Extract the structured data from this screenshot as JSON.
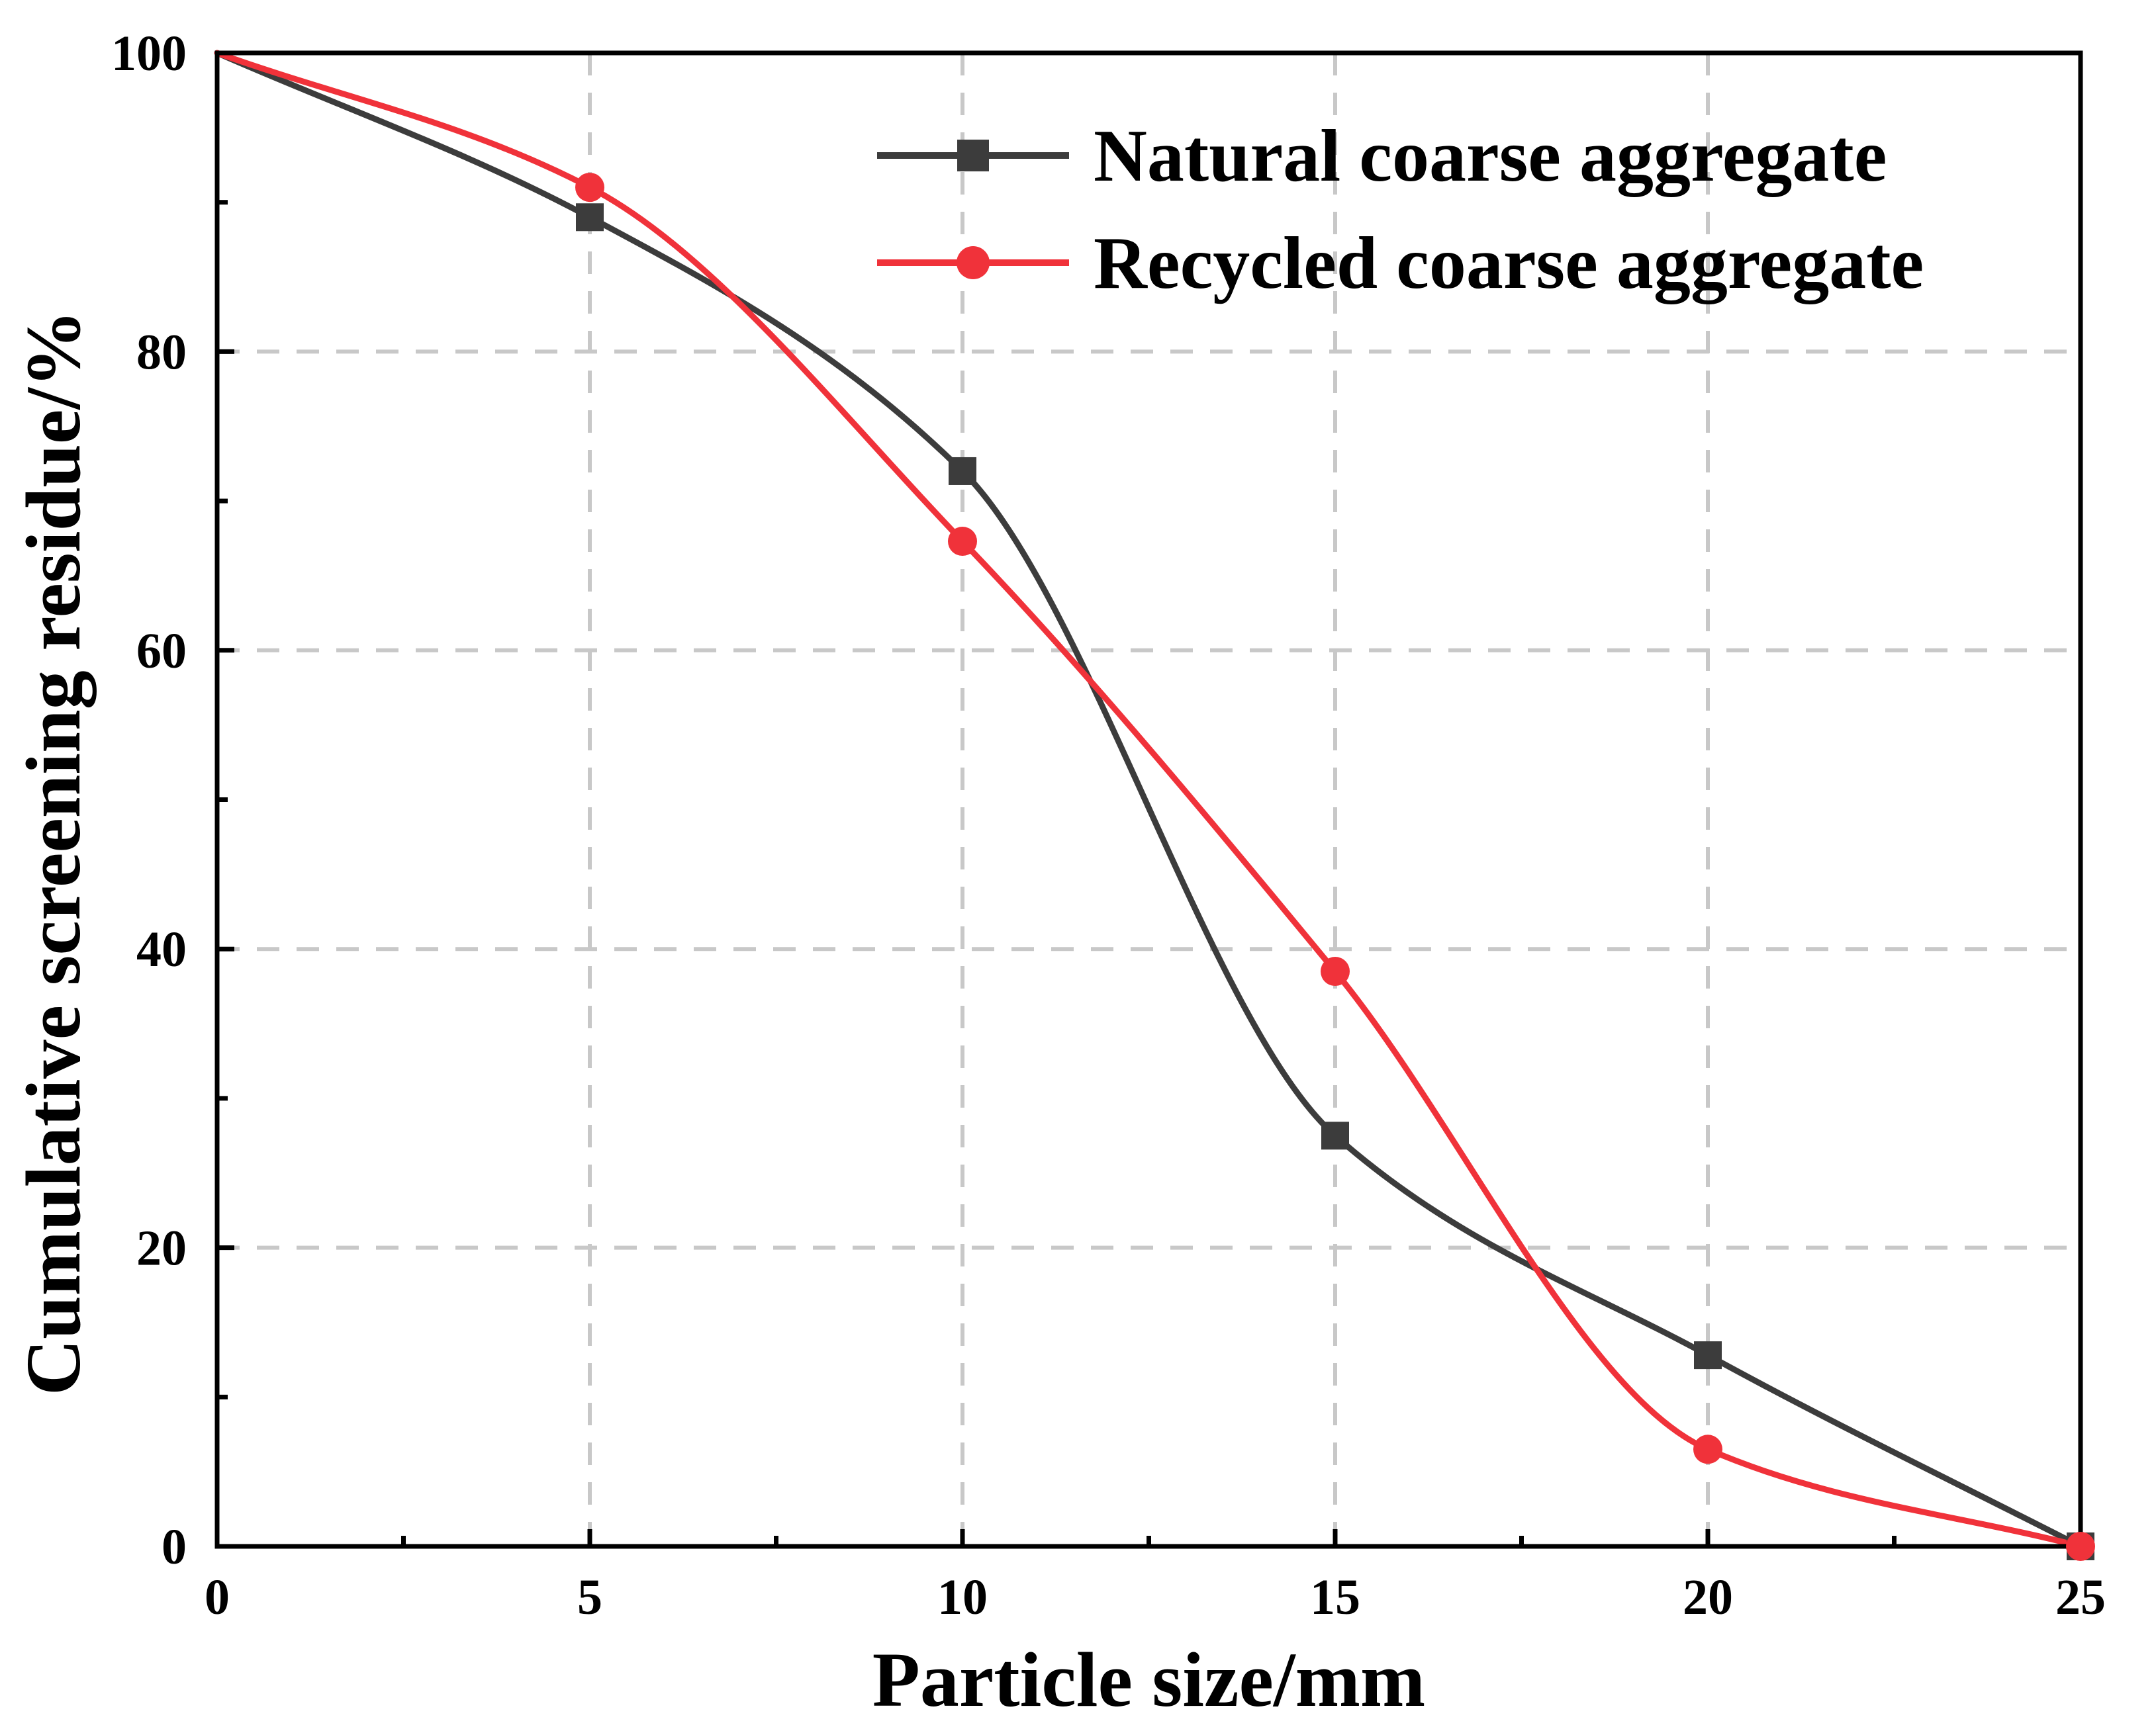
{
  "chart_data": {
    "type": "line",
    "title": "",
    "xlabel": "Particle size/mm",
    "ylabel": "Cumulative screening residue/%",
    "xlim": [
      0,
      25
    ],
    "ylim": [
      0,
      100
    ],
    "xticks": [
      0,
      5,
      10,
      15,
      20,
      25
    ],
    "xtick_labels": [
      "0",
      "5",
      "10",
      "15",
      "20",
      "25"
    ],
    "yticks": [
      0,
      20,
      40,
      60,
      80,
      100
    ],
    "ytick_labels": [
      "0",
      "20",
      "40",
      "60",
      "80",
      "100"
    ],
    "grid": true,
    "legend_position": "top-right",
    "series": [
      {
        "name": "Natural coarse aggregate",
        "color": "#3c3c3c",
        "marker": "square",
        "x": [
          0,
          5,
          10,
          15,
          20,
          25
        ],
        "y": [
          100,
          89,
          72,
          27.5,
          12.8,
          0
        ]
      },
      {
        "name": "Recycled coarse aggregate",
        "color": "#f0323a",
        "marker": "circle",
        "x": [
          0,
          5,
          10,
          15,
          20,
          25
        ],
        "y": [
          100,
          91,
          67.3,
          38.5,
          6.5,
          0
        ]
      }
    ]
  }
}
